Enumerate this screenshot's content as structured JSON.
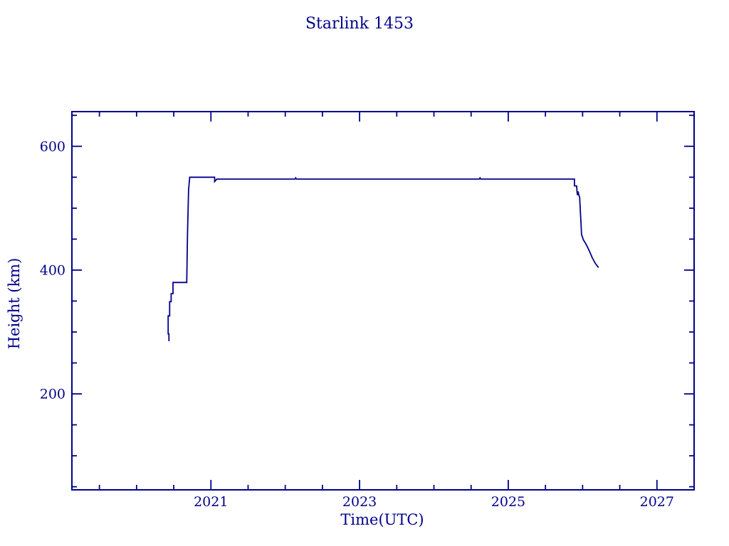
{
  "window": {
    "background_color": "#FFFFFF"
  },
  "colors": {
    "accent": "#00008B",
    "background": "#FFFFFF"
  },
  "chart_data": {
    "type": "line",
    "title": "Starlink 1453",
    "xlabel": "Time(UTC)",
    "ylabel": "Height (km)",
    "xlim": [
      2019.13,
      2027.5
    ],
    "ylim": [
      45,
      656
    ],
    "grid": false,
    "legend": null,
    "line_color": "#00008B",
    "frame_color": "#00008B",
    "xticks_major": [
      2021,
      2023,
      2025,
      2027
    ],
    "xtick_labels": [
      "2021",
      "2023",
      "2025",
      "2027"
    ],
    "xticks_minor": [
      2019.5,
      2020,
      2020.5,
      2021.5,
      2022,
      2022.5,
      2023.5,
      2024,
      2024.5,
      2025.5,
      2026,
      2026.5,
      2027.5
    ],
    "yticks_major": [
      200,
      400,
      600
    ],
    "ytick_labels": [
      "200",
      "400",
      "600"
    ],
    "yticks_minor": [
      50,
      100,
      150,
      250,
      300,
      350,
      450,
      500,
      550,
      650
    ],
    "series": [
      {
        "name": "height_km",
        "points": [
          [
            2020.435,
            285
          ],
          [
            2020.435,
            297
          ],
          [
            2020.425,
            297
          ],
          [
            2020.425,
            326
          ],
          [
            2020.445,
            326
          ],
          [
            2020.445,
            349
          ],
          [
            2020.465,
            349
          ],
          [
            2020.465,
            362
          ],
          [
            2020.49,
            362
          ],
          [
            2020.49,
            380
          ],
          [
            2020.675,
            380
          ],
          [
            2020.685,
            460
          ],
          [
            2020.7,
            530
          ],
          [
            2020.715,
            550
          ],
          [
            2021.05,
            550
          ],
          [
            2021.05,
            543
          ],
          [
            2021.08,
            547
          ],
          [
            2022.13,
            547
          ],
          [
            2022.14,
            549
          ],
          [
            2022.15,
            547
          ],
          [
            2024.61,
            547
          ],
          [
            2024.62,
            549
          ],
          [
            2024.63,
            547
          ],
          [
            2025.89,
            547
          ],
          [
            2025.89,
            536
          ],
          [
            2025.92,
            536
          ],
          [
            2025.925,
            527
          ],
          [
            2025.93,
            521
          ],
          [
            2025.94,
            527
          ],
          [
            2025.95,
            521
          ],
          [
            2025.96,
            518
          ],
          [
            2025.97,
            495
          ],
          [
            2025.98,
            472
          ],
          [
            2025.985,
            458
          ],
          [
            2026.01,
            449
          ],
          [
            2026.05,
            441
          ],
          [
            2026.09,
            431
          ],
          [
            2026.13,
            420
          ],
          [
            2026.17,
            411
          ],
          [
            2026.215,
            404
          ]
        ]
      }
    ]
  }
}
